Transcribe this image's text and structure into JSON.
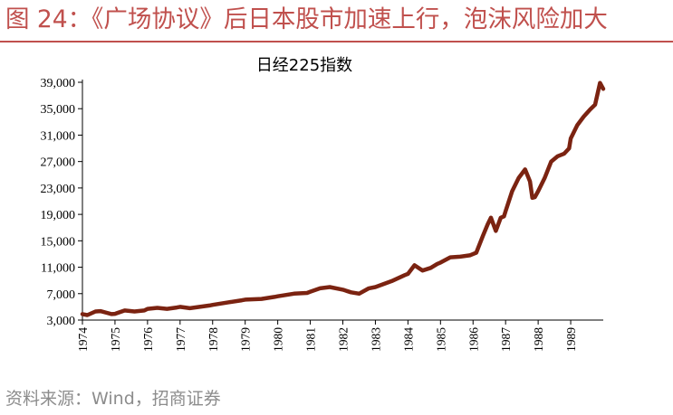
{
  "figure": {
    "title": "图 24：《广场协议》后日本股市加速上行，泡沫风险加大",
    "source": "资料来源：Wind，招商证券"
  },
  "colors": {
    "accent": "#c0504d",
    "series": "#7b2311",
    "source_text": "#8c8c8c"
  },
  "chart_data": {
    "type": "line",
    "title": "日经225指数",
    "xlabel": "",
    "ylabel": "",
    "ylim": [
      3000,
      39000
    ],
    "xlim": [
      1974.0,
      1990.0
    ],
    "y_ticks": [
      "3,000",
      "7,000",
      "11,000",
      "15,000",
      "19,000",
      "23,000",
      "27,000",
      "31,000",
      "35,000",
      "39,000"
    ],
    "x_ticks": [
      "1974",
      "1975",
      "1976",
      "1977",
      "1978",
      "1979",
      "1980",
      "1981",
      "1982",
      "1983",
      "1984",
      "1985",
      "1986",
      "1987",
      "1988",
      "1989"
    ],
    "grid": false,
    "legend": "none",
    "series": [
      {
        "x": [
          1974.0,
          1974.15,
          1974.4,
          1974.55,
          1974.75,
          1974.9,
          1975.0,
          1975.3,
          1975.6,
          1975.9,
          1976.0,
          1976.3,
          1976.6,
          1976.9,
          1977.0,
          1977.3,
          1977.6,
          1977.9,
          1978.0,
          1978.5,
          1978.9,
          1979.0,
          1979.5,
          1979.9,
          1980.0,
          1980.5,
          1980.9,
          1981.0,
          1981.3,
          1981.6,
          1981.9,
          1982.0,
          1982.25,
          1982.5,
          1982.8,
          1983.0,
          1983.5,
          1983.9,
          1984.0,
          1984.2,
          1984.45,
          1984.7,
          1984.9,
          1985.0,
          1985.3,
          1985.6,
          1985.9,
          1986.0,
          1986.1,
          1986.3,
          1986.45,
          1986.55,
          1986.7,
          1986.85,
          1986.95,
          1987.0,
          1987.2,
          1987.4,
          1987.6,
          1987.75,
          1987.82,
          1987.9,
          1988.0,
          1988.2,
          1988.4,
          1988.6,
          1988.8,
          1988.95,
          1989.0,
          1989.2,
          1989.4,
          1989.6,
          1989.75,
          1989.9,
          1990.0
        ],
        "y": [
          3900,
          3750,
          4300,
          4350,
          4100,
          3900,
          3950,
          4450,
          4300,
          4450,
          4700,
          4850,
          4700,
          4900,
          5000,
          4800,
          5000,
          5200,
          5300,
          5700,
          6000,
          6100,
          6200,
          6500,
          6600,
          7000,
          7100,
          7300,
          7800,
          8000,
          7700,
          7600,
          7200,
          7000,
          7800,
          8000,
          8900,
          9800,
          10000,
          11300,
          10500,
          10900,
          11500,
          11700,
          12500,
          12600,
          12800,
          13000,
          13200,
          15700,
          17500,
          18500,
          16500,
          18500,
          18700,
          19500,
          22500,
          24500,
          25800,
          24000,
          21500,
          21600,
          22500,
          24500,
          27000,
          27800,
          28200,
          29000,
          30500,
          32500,
          33800,
          34900,
          35600,
          38900,
          38000
        ]
      }
    ]
  }
}
